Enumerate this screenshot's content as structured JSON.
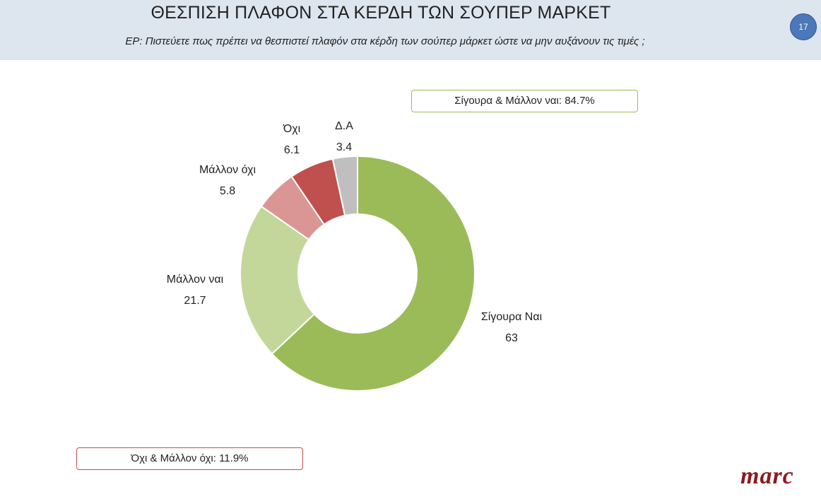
{
  "header": {
    "title": "ΘΕΣΠΙΣΗ ΠΛΑΦΟΝ ΣΤΑ ΚΕΡΔΗ ΤΩΝ ΣΟΥΠΕΡ ΜΑΡΚΕΤ",
    "subtitle": "ΕΡ: Πιστεύετε πως πρέπει να θεσπιστεί πλαφόν στα κέρδη των σούπερ μάρκετ ώστε να μην αυξάνουν τις τιμές ;",
    "page_number": "17"
  },
  "callouts": {
    "yes_total": "Σίγουρα & Μάλλον ναι: 84.7%",
    "no_total": "Όχι & Μάλλον όχι: 11.9%"
  },
  "logo": "marc",
  "chart_data": {
    "type": "pie",
    "donut": true,
    "categories": [
      "Σίγουρα Ναι",
      "Μάλλον ναι",
      "Μάλλον όχι",
      "Όχι",
      "Δ.Α"
    ],
    "values": [
      63,
      21.7,
      5.8,
      6.1,
      3.4
    ],
    "value_labels": [
      "63",
      "21.7",
      "5.8",
      "6.1",
      "3.4"
    ],
    "colors": [
      "#9bbb59",
      "#c4d79b",
      "#da9694",
      "#c0504d",
      "#bfbfbf"
    ],
    "start": "top",
    "direction": "clockwise",
    "legend": "none"
  }
}
